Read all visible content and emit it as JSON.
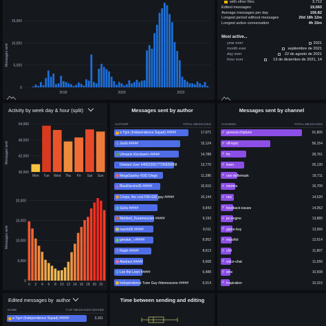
{
  "colors": {
    "blue": "#1e6fd9",
    "author_bar": "#4f6de6",
    "channel_bar": "#8b4fe6",
    "background": "#0b0d10",
    "panel": "#15181d"
  },
  "top_chart": {
    "ylabel": "Messages sent",
    "yticks": [
      "15,000",
      "10,000",
      "5,000",
      "0"
    ],
    "xticks": [
      "2018",
      "2020",
      "2022"
    ],
    "chart_data": {
      "type": "bar",
      "ylim": [
        0,
        19060
      ],
      "values": [
        0,
        0,
        0,
        200,
        600,
        300,
        1200,
        500,
        2100,
        3800,
        2400,
        3100,
        700,
        900,
        2600,
        1400,
        1200,
        900,
        700,
        300,
        600,
        1100,
        800,
        400,
        1800,
        1500,
        7400,
        1200,
        900,
        4200,
        5300,
        4600,
        4100,
        3600,
        2400,
        1400,
        600,
        1200,
        900,
        400,
        700,
        1600,
        900,
        1200,
        1700,
        1200,
        1500,
        1600,
        8300,
        9500,
        8700,
        12200,
        14100,
        16800,
        17800,
        19060,
        18500,
        16500,
        14700,
        10200,
        8200,
        6100,
        2400,
        1700,
        1300,
        900,
        900,
        700,
        1300,
        900,
        500,
        1200,
        300
      ]
    }
  },
  "stats": {
    "with_other_files": "with other files",
    "rows": [
      {
        "k": "Edited messages",
        "v": "19,060"
      },
      {
        "k": "Average messages per day",
        "v": "156.82"
      },
      {
        "k": "Longest period without messages",
        "v": "20d 18h 12m"
      },
      {
        "k": "Longest active conversation",
        "v": "4h 15m"
      }
    ],
    "partial_top": "3,712",
    "most_active_title": "Most active...",
    "most_active": [
      {
        "k": "year ever",
        "v": "2021"
      },
      {
        "k": "month ever",
        "v": "septiembre de 2021"
      },
      {
        "k": "day ever",
        "v": "22 de agosto de 2021"
      },
      {
        "k": "hour ever",
        "v": "13 de diciembre de 2021, 14"
      }
    ]
  },
  "week_hour": {
    "title": "Activity by week day & hour (split)",
    "days": {
      "yticks": [
        "54,000",
        "48,000",
        "42,000",
        "36,000"
      ],
      "ylabel": "Messages sent",
      "chart_data": {
        "type": "bar",
        "categories": [
          "Mon",
          "Tue",
          "Wed",
          "Thu",
          "Fri",
          "Sat",
          "Sun"
        ],
        "values": [
          38900,
          53300,
          51700,
          47400,
          48900,
          51900,
          51100
        ],
        "ylim": [
          36000,
          54000
        ]
      }
    },
    "hours": {
      "yticks": [
        "20,000",
        "15,000",
        "10,000",
        "5,000",
        "0"
      ],
      "xticks": [
        "0",
        "2",
        "4",
        "6",
        "8",
        "10",
        "12",
        "14",
        "16",
        "18",
        "20",
        "22"
      ],
      "ylabel": "Messages sent",
      "chart_data": {
        "type": "bar",
        "categories": [
          "0",
          "1",
          "2",
          "3",
          "4",
          "5",
          "6",
          "7",
          "8",
          "9",
          "10",
          "11",
          "12",
          "13",
          "14",
          "15",
          "16",
          "17",
          "18",
          "19",
          "20",
          "21",
          "22",
          "23"
        ],
        "values": [
          14800,
          13000,
          10500,
          8700,
          7200,
          5200,
          4400,
          3700,
          3000,
          2500,
          2600,
          3300,
          4700,
          7100,
          9200,
          11900,
          13400,
          15100,
          15900,
          18000,
          19500,
          20600,
          19900,
          17600
        ],
        "ylim": [
          0,
          23000
        ]
      }
    }
  },
  "authors": {
    "title": "Messages sent by author",
    "col_author": "AUTHOR",
    "col_total": "TOTAL MESSAGES",
    "rows": [
      {
        "name": "a Ygor (Independence Squad) #####",
        "total": "17,071",
        "value": 17071
      },
      {
        "name": "Joshi #####",
        "total": "15,124",
        "value": 15124
      },
      {
        "name": "Uhrwerk Klockwerx #####",
        "total": "14,788",
        "value": 14788
      },
      {
        "name": "Deleted User #456226577795835808",
        "total": "13,776",
        "value": 13776
      },
      {
        "name": "MegaSparky #SID Diego",
        "total": "11,286",
        "value": 11286
      },
      {
        "name": "BlueElectric05 #####",
        "total": "10,515",
        "value": 10515
      },
      {
        "name": "Crisps, the cool FM+SID guy #####",
        "total": "10,144",
        "value": 10144
      },
      {
        "name": "SaVa #####",
        "total": "9,943",
        "value": 9943
      },
      {
        "name": "Mahbod_Karamoozian #####",
        "total": "9,193",
        "value": 9193
      },
      {
        "name": "marcb05 #####",
        "total": "9,011",
        "value": 9011
      },
      {
        "name": "genatar_i #####",
        "total": "8,952",
        "value": 8952
      },
      {
        "name": "Raijin #####",
        "total": "8,613",
        "value": 8613
      },
      {
        "name": "Abstract #####",
        "total": "6,668",
        "value": 6668
      },
      {
        "name": "Leo the Leon #####",
        "total": "6,488",
        "value": 6488
      },
      {
        "name": "Independence Tune Guy #demoscene #####",
        "total": "6,014",
        "value": 6014
      }
    ]
  },
  "channels": {
    "title": "Messages sent by channel",
    "col_channel": "CHANNEL",
    "col_total": "TOTAL MESSAGES",
    "rows": [
      {
        "name": "general-chiptune",
        "total": "91,805",
        "value": 91805
      },
      {
        "name": "off-topic",
        "total": "56,154",
        "value": 56154
      },
      {
        "name": "fm",
        "total": "28,761",
        "value": 28761
      },
      {
        "name": "learn",
        "total": "26,130",
        "value": 26130
      },
      {
        "name": "non-deflemask",
        "total": "18,711",
        "value": 18711
      },
      {
        "name": "memes",
        "total": "16,709",
        "value": 16709
      },
      {
        "name": "nes",
        "total": "14,520",
        "value": 14520
      },
      {
        "name": "feedback-issues",
        "total": "14,052",
        "value": 14052
      },
      {
        "name": "pc-engine",
        "total": "13,880",
        "value": 13880
      },
      {
        "name": "game-boy",
        "total": "13,566",
        "value": 13566
      },
      {
        "name": "español",
        "total": "12,614",
        "value": 12614
      },
      {
        "name": "c64",
        "total": "11,807",
        "value": 11807
      },
      {
        "name": "voice-chat",
        "total": "11,656",
        "value": 11656
      },
      {
        "name": "sms",
        "total": "10,508",
        "value": 10508
      },
      {
        "name": "inspiration",
        "total": "10,315",
        "value": 10315
      }
    ]
  },
  "edited": {
    "title": "Edited messages by",
    "select_value": "author",
    "col_name": "NAME",
    "col_total": "# OF MESSAGES EDITED",
    "row_name": "a Ygor (Independence Squad) #####",
    "row_total": "3,161",
    "row_value": 3161
  },
  "time_edit": {
    "title": "Time between sending and editing"
  }
}
